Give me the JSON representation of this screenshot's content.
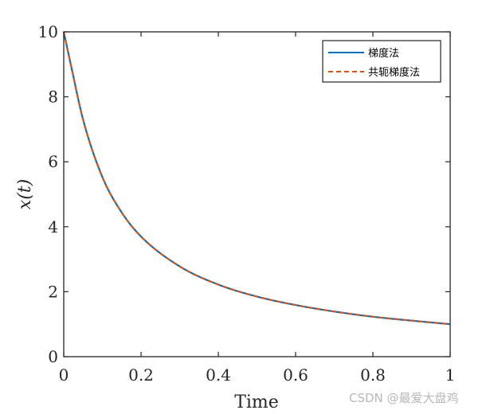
{
  "chart_data": {
    "type": "line",
    "title": "",
    "xlabel": "Time",
    "ylabel": "x(t)",
    "xlim": [
      0,
      1
    ],
    "ylim": [
      0,
      10
    ],
    "xticks": [
      "0",
      "0.2",
      "0.4",
      "0.6",
      "0.8",
      "1"
    ],
    "yticks": [
      "0",
      "2",
      "4",
      "6",
      "8",
      "10"
    ],
    "grid": false,
    "legend_position": "top-right",
    "x": [
      0,
      0.02,
      0.05,
      0.1,
      0.15,
      0.2,
      0.3,
      0.4,
      0.5,
      0.6,
      0.7,
      0.8,
      0.9,
      1.0
    ],
    "series": [
      {
        "name": "梯度法",
        "color": "#0072BD",
        "style": "solid",
        "values": [
          10,
          8.9,
          7.3,
          5.53,
          4.44,
          3.7,
          2.78,
          2.22,
          1.85,
          1.59,
          1.39,
          1.23,
          1.11,
          1.0
        ]
      },
      {
        "name": "共轭梯度法",
        "color": "#D95319",
        "style": "dashed",
        "values": [
          10,
          8.9,
          7.3,
          5.53,
          4.44,
          3.7,
          2.78,
          2.22,
          1.85,
          1.59,
          1.39,
          1.23,
          1.11,
          1.0
        ]
      }
    ]
  },
  "watermark": "CSDN @最爱大盘鸡"
}
